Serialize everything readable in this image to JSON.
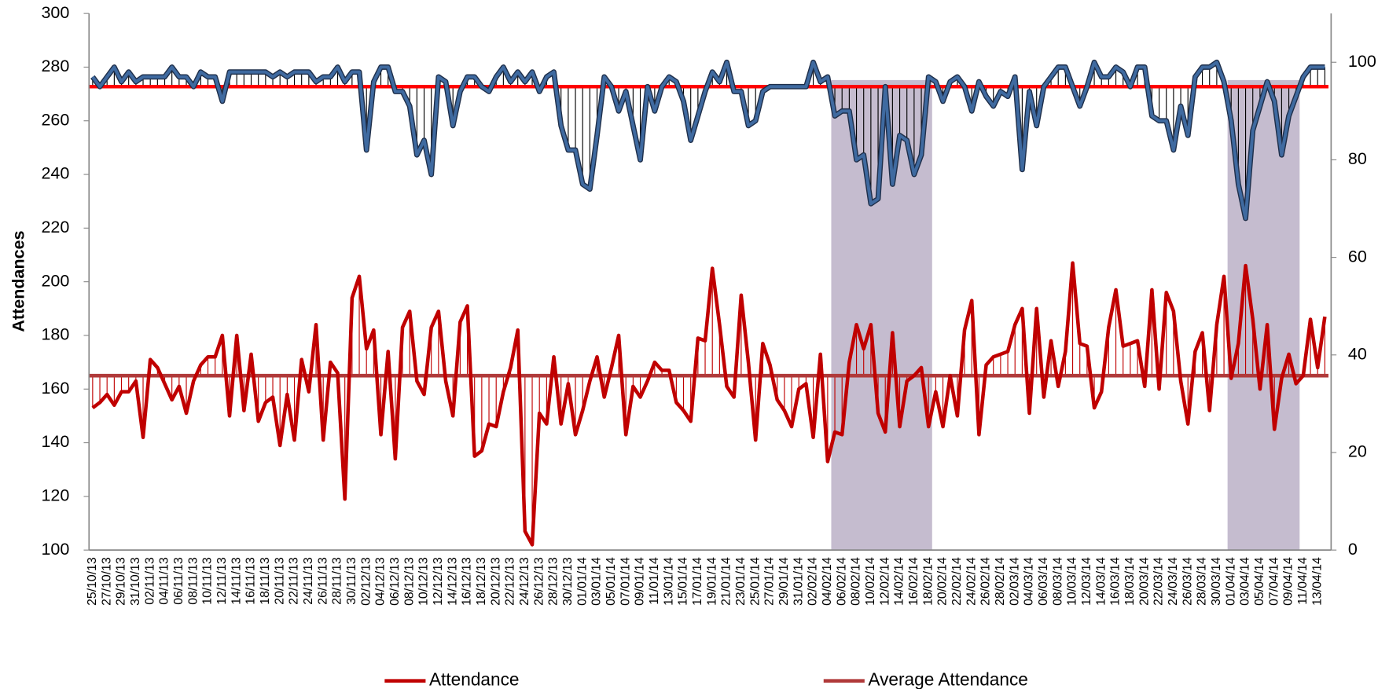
{
  "chart_data": {
    "type": "line",
    "y_label": "Attendances",
    "categories": [
      "25/10/13",
      null,
      "27/10/13",
      null,
      "29/10/13",
      null,
      "31/10/13",
      null,
      "02/11/13",
      null,
      "04/11/13",
      null,
      "06/11/13",
      null,
      "08/11/13",
      null,
      "10/11/13",
      null,
      "12/11/13",
      null,
      "14/11/13",
      null,
      "16/11/13",
      null,
      "18/11/13",
      null,
      "20/11/13",
      null,
      "22/11/13",
      null,
      "24/11/13",
      null,
      "26/11/13",
      null,
      "28/11/13",
      null,
      "30/11/13",
      null,
      "02/12/13",
      null,
      "04/12/13",
      null,
      "06/12/13",
      null,
      "08/12/13",
      null,
      "10/12/13",
      null,
      "12/12/13",
      null,
      "14/12/13",
      null,
      "16/12/13",
      null,
      "18/12/13",
      null,
      "20/12/13",
      null,
      "22/12/13",
      null,
      "24/12/13",
      null,
      "26/12/13",
      null,
      "28/12/13",
      null,
      "30/12/13",
      null,
      "01/01/14",
      null,
      "03/01/14",
      null,
      "05/01/14",
      null,
      "07/01/14",
      null,
      "09/01/14",
      null,
      "11/01/14",
      null,
      "13/01/14",
      null,
      "15/01/14",
      null,
      "17/01/14",
      null,
      "19/01/14",
      null,
      "21/01/14",
      null,
      "23/01/14",
      null,
      "25/01/14",
      null,
      "27/01/14",
      null,
      "29/01/14",
      null,
      "31/01/14",
      null,
      "02/02/14",
      null,
      "04/02/14",
      null,
      "06/02/14",
      null,
      "08/02/14",
      null,
      "10/02/14",
      null,
      "12/02/14",
      null,
      "14/02/14",
      null,
      "16/02/14",
      null,
      "18/02/14",
      null,
      "20/02/14",
      null,
      "22/02/14",
      null,
      "24/02/14",
      null,
      "26/02/14",
      null,
      "28/02/14",
      null,
      "02/03/14",
      null,
      "04/03/14",
      null,
      "06/03/14",
      null,
      "08/03/14",
      null,
      "10/03/14",
      null,
      "12/03/14",
      null,
      "14/03/14",
      null,
      "16/03/14",
      null,
      "18/03/14",
      null,
      "20/03/14",
      null,
      "22/03/14",
      null,
      "24/03/14",
      null,
      "26/03/14",
      null,
      "28/03/14",
      null,
      "30/03/14",
      null,
      "01/04/14",
      null,
      "03/04/14",
      null,
      "05/04/14",
      null,
      "07/04/14",
      null,
      "09/04/14",
      null,
      "11/04/14",
      null,
      "13/04/14",
      null
    ],
    "series": [
      {
        "name": "Attendance",
        "color": "#c00000",
        "drop_to": 0,
        "values": [
          153,
          155,
          158,
          154,
          159,
          159,
          163,
          142,
          171,
          168,
          162,
          156,
          161,
          151,
          163,
          169,
          172,
          172,
          180,
          150,
          180,
          152,
          173,
          148,
          155,
          157,
          139,
          158,
          141,
          171,
          159,
          184,
          141,
          170,
          166,
          119,
          194,
          202,
          175,
          182,
          143,
          174,
          134,
          183,
          189,
          163,
          158,
          183,
          189,
          163,
          150,
          185,
          191,
          135,
          137,
          147,
          146,
          159,
          168,
          182,
          107,
          102,
          151,
          147,
          172,
          147,
          162,
          143,
          152,
          163,
          172,
          157,
          168,
          180,
          143,
          161,
          157,
          163,
          170,
          167,
          167,
          155,
          152,
          148,
          179,
          178,
          205,
          184,
          161,
          157,
          195,
          170,
          141,
          177,
          169,
          156,
          152,
          146,
          160,
          162,
          142,
          173,
          133,
          144,
          143,
          170,
          184,
          175,
          184,
          151,
          144,
          181,
          146,
          163,
          165,
          168,
          146,
          159,
          146,
          165,
          150,
          182,
          193,
          143,
          169,
          172,
          173,
          174,
          184,
          190,
          151,
          190,
          157,
          178,
          161,
          174,
          207,
          177,
          176,
          153,
          159,
          183,
          197,
          176,
          177,
          178,
          161,
          197,
          160,
          196,
          189,
          163,
          147,
          174,
          181,
          152,
          184,
          202,
          164,
          177,
          206,
          186,
          160,
          184,
          145,
          164,
          173,
          162,
          165,
          186,
          168,
          187
        ]
      },
      {
        "color": "#3f6aa0",
        "axis": "y2",
        "drop_to": 1,
        "values": [
          97,
          95,
          97,
          99,
          96,
          98,
          96,
          97,
          97,
          97,
          97,
          99,
          97,
          97,
          95,
          98,
          97,
          97,
          92,
          98,
          98,
          98,
          98,
          98,
          98,
          97,
          98,
          97,
          98,
          98,
          98,
          96,
          97,
          97,
          99,
          96,
          98,
          98,
          82,
          96,
          99,
          99,
          94,
          94,
          91,
          81,
          84,
          77,
          97,
          96,
          87,
          94,
          97,
          97,
          95,
          94,
          97,
          99,
          96,
          98,
          96,
          98,
          94,
          97,
          98,
          87,
          82,
          82,
          75,
          74,
          85,
          97,
          95,
          90,
          94,
          87,
          80,
          95,
          90,
          95,
          97,
          96,
          92,
          84,
          89,
          94,
          98,
          96,
          100,
          94,
          94,
          87,
          88,
          94,
          95,
          95,
          95,
          95,
          95,
          95,
          100,
          96,
          97,
          89,
          90,
          90,
          80,
          81,
          71,
          72,
          95,
          75,
          85,
          84,
          77,
          81,
          97,
          96,
          92,
          96,
          97,
          95,
          90,
          96,
          93,
          91,
          94,
          93,
          97,
          78,
          94,
          87,
          95,
          97,
          99,
          99,
          95,
          91,
          95,
          100,
          97,
          97,
          99,
          98,
          95,
          99,
          99,
          89,
          88,
          88,
          82,
          91,
          85,
          97,
          99,
          99,
          100,
          96,
          88,
          75,
          68,
          86,
          91,
          96,
          92,
          81,
          89,
          93,
          97,
          99,
          99,
          99
        ]
      }
    ],
    "reference_lines": [
      {
        "name": "Average Attendance",
        "color": "#b03a3a",
        "value": 165
      },
      {
        "color": "#ff0000",
        "axis": "y2",
        "value": 95
      }
    ],
    "highlight_ranges": [
      [
        103,
        117
      ],
      [
        158,
        168
      ]
    ],
    "highlight_color": "#c5bccf",
    "ylim": [
      100,
      300
    ],
    "yticks": [
      100,
      120,
      140,
      160,
      180,
      200,
      220,
      240,
      260,
      280,
      300
    ],
    "y2lim": [
      0,
      110
    ],
    "y2ticks": [
      0,
      20,
      40,
      60,
      80,
      100
    ],
    "legend": "bottom"
  }
}
